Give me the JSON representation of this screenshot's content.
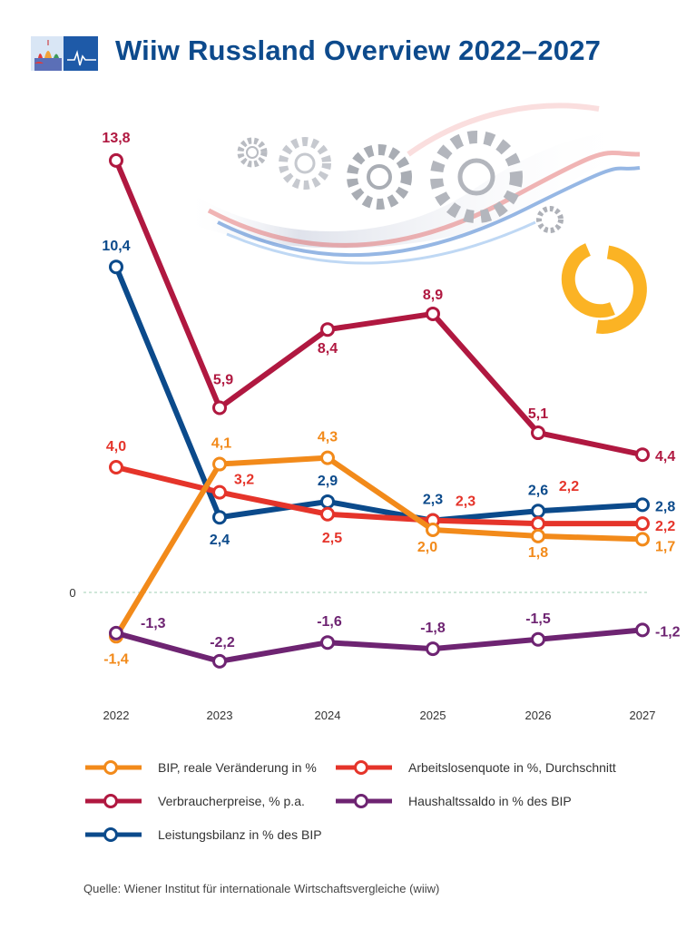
{
  "header": {
    "title": "Wiiw Russland Overview 2022–2027"
  },
  "colors": {
    "bip": "#f28a1a",
    "verbraucherpreise": "#b01840",
    "leistungsbilanz": "#0b4a8b",
    "arbeitslosenquote": "#e5342a",
    "haushaltssaldo": "#6e2472",
    "title": "#0d4a8c",
    "logo_yellow": "#fbb324"
  },
  "chart_data": {
    "type": "line",
    "title": "Wiiw Russland Overview 2022–2027",
    "categories": [
      "2022",
      "2023",
      "2024",
      "2025",
      "2026",
      "2027"
    ],
    "zero_label": "0",
    "ylim": [
      -3,
      15
    ],
    "series": [
      {
        "key": "verbraucherpreise",
        "name": "Verbraucherpreise, % p.a.",
        "values": [
          13.8,
          5.9,
          8.4,
          8.9,
          5.1,
          4.4
        ],
        "labels": [
          "13,8",
          "5,9",
          "8,4",
          "8,9",
          "5,1",
          "4,4"
        ]
      },
      {
        "key": "leistungsbilanz",
        "name": "Leistungsbilanz in % des BIP",
        "values": [
          10.4,
          2.4,
          2.9,
          2.3,
          2.6,
          2.8
        ],
        "labels": [
          "10,4",
          "2,4",
          "2,9",
          "2,3",
          "2,6",
          "2,8"
        ]
      },
      {
        "key": "arbeitslosenquote",
        "name": "Arbeitslosenquote in %, Durchschnitt",
        "values": [
          4.0,
          3.2,
          2.5,
          2.3,
          2.2,
          2.2
        ],
        "labels": [
          "4,0",
          "3,2",
          "2,5",
          "2,3",
          "2,2",
          "2,2"
        ]
      },
      {
        "key": "bip",
        "name": "BIP, reale Veränderung in %",
        "values": [
          -1.4,
          4.1,
          4.3,
          2.0,
          1.8,
          1.7
        ],
        "labels": [
          "-1,4",
          "4,1",
          "4,3",
          "2,0",
          "1,8",
          "1,7"
        ]
      },
      {
        "key": "haushaltssaldo",
        "name": "Haushaltssaldo in % des BIP",
        "values": [
          -1.3,
          -2.2,
          -1.6,
          -1.8,
          -1.5,
          -1.2
        ],
        "labels": [
          "-1,3",
          "-2,2",
          "-1,6",
          "-1,8",
          "-1,5",
          "-1,2"
        ]
      }
    ]
  },
  "legend": {
    "bip": "BIP, reale Veränderung in %",
    "arbeitslosenquote": "Arbeitslosenquote in %, Durchschnitt",
    "verbraucherpreise": "Verbraucherpreise, % p.a.",
    "haushaltssaldo": "Haushaltssaldo in % des BIP",
    "leistungsbilanz": "Leistungsbilanz in % des BIP"
  },
  "source": "Quelle: Wiener Institut für internationale Wirtschaftsvergleiche (wiiw)"
}
